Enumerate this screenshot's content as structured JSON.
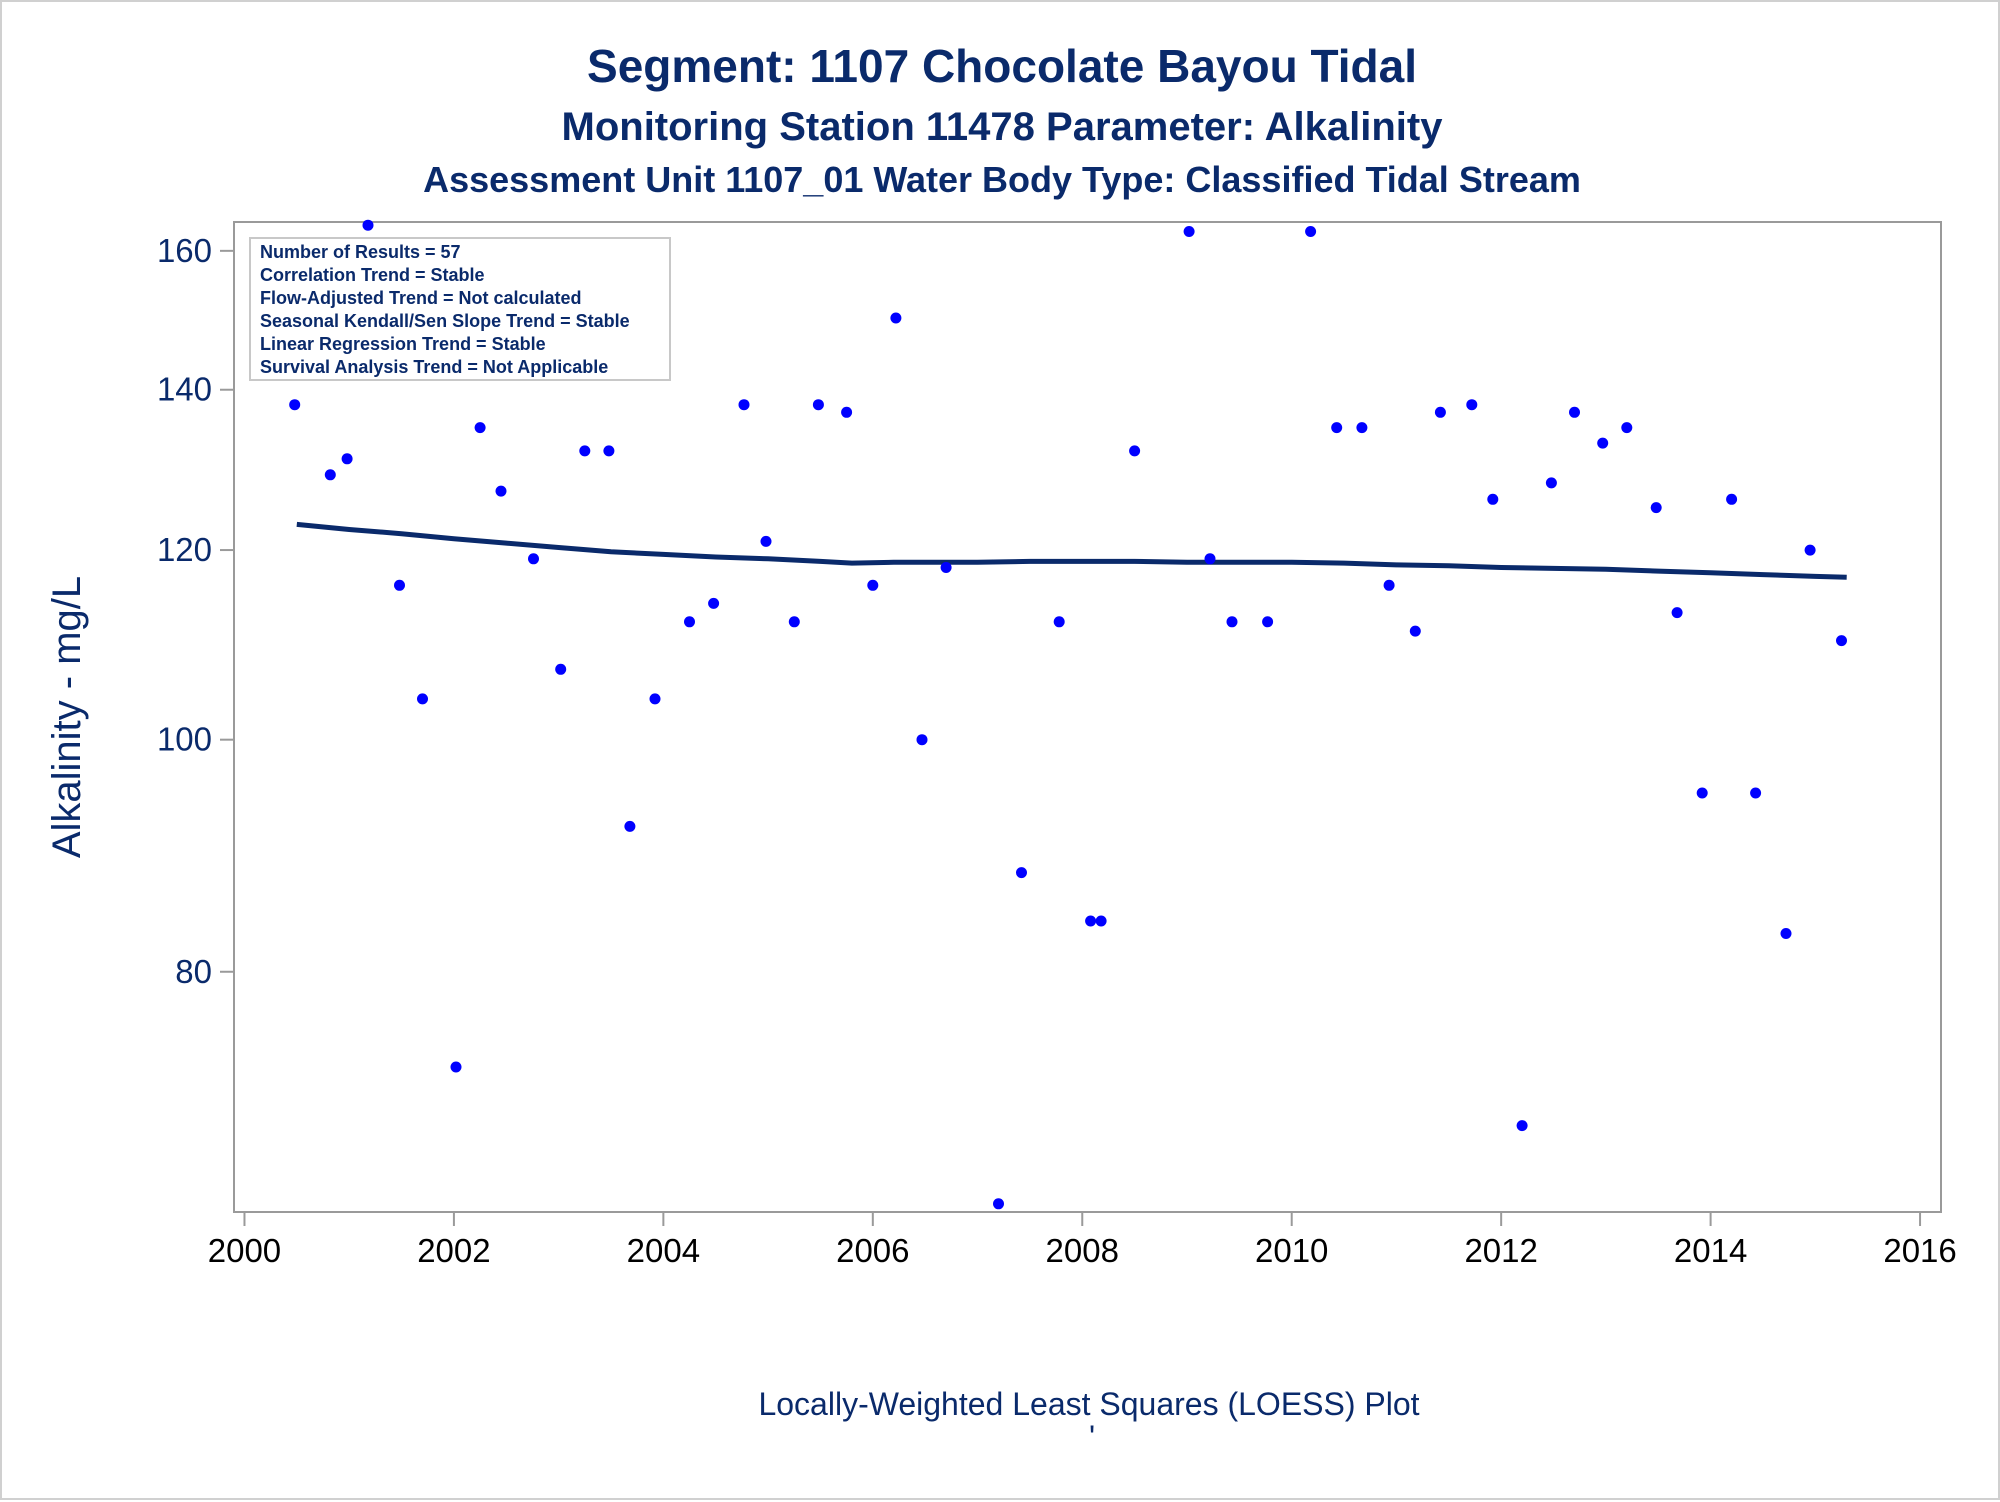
{
  "titles": {
    "line1": "Segment: 1107  Chocolate Bayou Tidal",
    "line2": "Monitoring Station 11478 Parameter: Alkalinity",
    "line3": "Assessment Unit 1107_01   Water Body Type: Classified Tidal Stream"
  },
  "stats": [
    "Number of Results = 57",
    "Correlation Trend = Stable",
    "Flow-Adjusted Trend = Not calculated",
    "Seasonal Kendall/Sen Slope Trend = Stable",
    "Linear Regression Trend = Stable",
    "Survival Analysis Trend = Not Applicable"
  ],
  "footnote": "Locally-Weighted Least Squares (LOESS) Plot",
  "footnote_mark": "'",
  "chart_data": {
    "type": "scatter",
    "ylabel": "Alkalinity - mg/L",
    "xlabel": "",
    "y_scale": "log",
    "xlim": [
      1999.9,
      2016.2
    ],
    "ylim": [
      63.5,
      164.5
    ],
    "xticks": [
      "2000",
      "2002",
      "2004",
      "2006",
      "2008",
      "2010",
      "2012",
      "2014",
      "2016"
    ],
    "yticks": [
      "80",
      "100",
      "120",
      "140",
      "160"
    ],
    "grid": false,
    "colors": {
      "points": "#0000ff",
      "loess": "#0a2a6b",
      "axis": "#9a9a9a",
      "text": "#0a2a6b"
    },
    "series": [
      {
        "type": "scatter",
        "points": [
          [
            2000.48,
            138
          ],
          [
            2000.82,
            129
          ],
          [
            2000.98,
            131
          ],
          [
            2001.18,
            164
          ],
          [
            2001.48,
            116
          ],
          [
            2001.7,
            104
          ],
          [
            2002.02,
            73
          ],
          [
            2002.25,
            135
          ],
          [
            2002.45,
            127
          ],
          [
            2002.76,
            119
          ],
          [
            2003.02,
            107
          ],
          [
            2003.25,
            132
          ],
          [
            2003.48,
            132
          ],
          [
            2003.68,
            92
          ],
          [
            2003.92,
            104
          ],
          [
            2004.25,
            112
          ],
          [
            2004.48,
            114
          ],
          [
            2004.77,
            138
          ],
          [
            2004.98,
            121
          ],
          [
            2005.25,
            112
          ],
          [
            2005.48,
            138
          ],
          [
            2005.75,
            137
          ],
          [
            2006.0,
            116
          ],
          [
            2006.22,
            150
          ],
          [
            2006.47,
            100
          ],
          [
            2006.7,
            118
          ],
          [
            2007.2,
            64
          ],
          [
            2007.42,
            88
          ],
          [
            2007.78,
            112
          ],
          [
            2008.08,
            84
          ],
          [
            2008.18,
            84
          ],
          [
            2008.5,
            132
          ],
          [
            2009.02,
            163
          ],
          [
            2009.22,
            119
          ],
          [
            2009.43,
            112
          ],
          [
            2009.77,
            112
          ],
          [
            2010.18,
            163
          ],
          [
            2010.43,
            135
          ],
          [
            2010.67,
            135
          ],
          [
            2010.93,
            116
          ],
          [
            2011.18,
            111
          ],
          [
            2011.42,
            137
          ],
          [
            2011.72,
            138
          ],
          [
            2011.92,
            126
          ],
          [
            2012.2,
            69
          ],
          [
            2012.48,
            128
          ],
          [
            2012.7,
            137
          ],
          [
            2012.97,
            133
          ],
          [
            2013.2,
            135
          ],
          [
            2013.48,
            125
          ],
          [
            2013.68,
            113
          ],
          [
            2013.92,
            95
          ],
          [
            2014.2,
            126
          ],
          [
            2014.43,
            95
          ],
          [
            2014.72,
            83
          ],
          [
            2014.95,
            120
          ],
          [
            2015.25,
            110
          ]
        ]
      },
      {
        "type": "line",
        "points": [
          [
            2000.5,
            123.0
          ],
          [
            2001.0,
            122.4
          ],
          [
            2001.5,
            121.9
          ],
          [
            2002.0,
            121.3
          ],
          [
            2002.5,
            120.8
          ],
          [
            2003.0,
            120.3
          ],
          [
            2003.5,
            119.8
          ],
          [
            2004.0,
            119.5
          ],
          [
            2004.5,
            119.2
          ],
          [
            2005.0,
            119.0
          ],
          [
            2005.5,
            118.7
          ],
          [
            2005.8,
            118.5
          ],
          [
            2006.2,
            118.6
          ],
          [
            2006.5,
            118.6
          ],
          [
            2007.0,
            118.6
          ],
          [
            2007.5,
            118.7
          ],
          [
            2008.0,
            118.7
          ],
          [
            2008.5,
            118.7
          ],
          [
            2009.0,
            118.6
          ],
          [
            2009.5,
            118.6
          ],
          [
            2010.0,
            118.6
          ],
          [
            2010.5,
            118.5
          ],
          [
            2011.0,
            118.3
          ],
          [
            2011.5,
            118.2
          ],
          [
            2012.0,
            118.0
          ],
          [
            2012.5,
            117.9
          ],
          [
            2013.0,
            117.8
          ],
          [
            2013.5,
            117.6
          ],
          [
            2014.0,
            117.4
          ],
          [
            2014.5,
            117.2
          ],
          [
            2015.0,
            117.0
          ],
          [
            2015.3,
            116.9
          ]
        ]
      }
    ]
  }
}
